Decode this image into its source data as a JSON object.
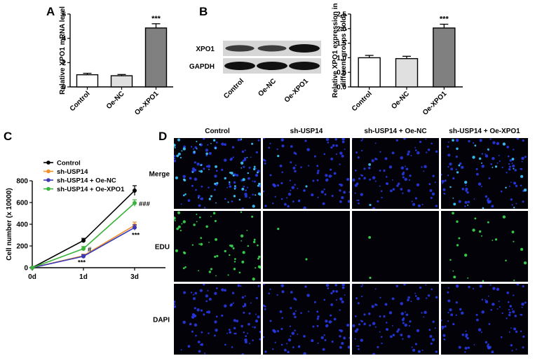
{
  "panels": {
    "A": "A",
    "B": "B",
    "C": "C",
    "D": "D"
  },
  "chart_data": [
    {
      "id": "A",
      "type": "bar",
      "title": "",
      "xlabel": "",
      "ylabel": "Relative XPO1 mRNA level",
      "categories": [
        "Control",
        "Oe-NC",
        "Oe-XPO1"
      ],
      "values": [
        1.0,
        0.92,
        4.85
      ],
      "errors": [
        0.12,
        0.1,
        0.35
      ],
      "ylim": [
        0,
        6
      ],
      "yticks": [
        0,
        2,
        4,
        6
      ],
      "colors": [
        "#ffffff",
        "#e0e0e0",
        "#808080"
      ],
      "annotations": [
        {
          "category": "Oe-XPO1",
          "text": "***"
        }
      ]
    },
    {
      "id": "B",
      "type": "bar",
      "title": "",
      "xlabel": "",
      "ylabel_lines": [
        "Relative XPO1 expression in",
        "different groups (fold)"
      ],
      "categories": [
        "Control",
        "Oe-NC",
        "Oe-XPO1"
      ],
      "values": [
        1.0,
        0.97,
        2.02
      ],
      "errors": [
        0.08,
        0.08,
        0.13
      ],
      "ylim": [
        0,
        2.5
      ],
      "yticks": [
        "0.0",
        "0.5",
        "1.0",
        "1.5",
        "2.0",
        "2.5"
      ],
      "colors": [
        "#ffffff",
        "#e0e0e0",
        "#808080"
      ],
      "annotations": [
        {
          "category": "Oe-XPO1",
          "text": "***"
        }
      ]
    },
    {
      "id": "C",
      "type": "line",
      "title": "",
      "xlabel": "",
      "ylabel": "Cell number (x 10000)",
      "x": [
        "0d",
        "1d",
        "3d"
      ],
      "ylim": [
        0,
        800
      ],
      "yticks": [
        0,
        200,
        400,
        600,
        800
      ],
      "series": [
        {
          "name": "Control",
          "color": "#000000",
          "values": [
            0,
            250,
            710
          ],
          "errors": [
            5,
            20,
            45
          ]
        },
        {
          "name": "sh-USP14",
          "color": "#f0922b",
          "values": [
            0,
            110,
            390
          ],
          "errors": [
            5,
            15,
            30
          ]
        },
        {
          "name": "sh-USP14 + Oe-NC",
          "color": "#3a3ab8",
          "values": [
            0,
            105,
            370
          ],
          "errors": [
            5,
            15,
            25
          ]
        },
        {
          "name": "sh-USP14 + Oe-XPO1",
          "color": "#3cb43c",
          "values": [
            0,
            175,
            595
          ],
          "errors": [
            5,
            20,
            30
          ]
        }
      ],
      "annotations": [
        {
          "x": "1d",
          "text": "#"
        },
        {
          "x": "1d",
          "text": "***"
        },
        {
          "x": "3d",
          "text": "###"
        },
        {
          "x": "3d",
          "text": "***"
        }
      ]
    }
  ],
  "western_blot": {
    "bands": [
      "XPO1",
      "GAPDH"
    ],
    "lanes": [
      "Control",
      "Oe-NC",
      "Oe-XPO1"
    ],
    "band_intensities": {
      "XPO1": [
        0.55,
        0.5,
        1.0
      ],
      "GAPDH": [
        1.0,
        1.0,
        1.0
      ]
    }
  },
  "edu_panel": {
    "columns": [
      "Control",
      "sh-USP14",
      "sh-USP14 + Oe-NC",
      "sh-USP14 + Oe-XPO1"
    ],
    "rows": [
      "Merge",
      "EDU",
      "DAPI"
    ],
    "colors": {
      "dapi": "#2a3cf0",
      "edu": "#3cdc50",
      "merge_overlay": "#40c8ff"
    }
  }
}
